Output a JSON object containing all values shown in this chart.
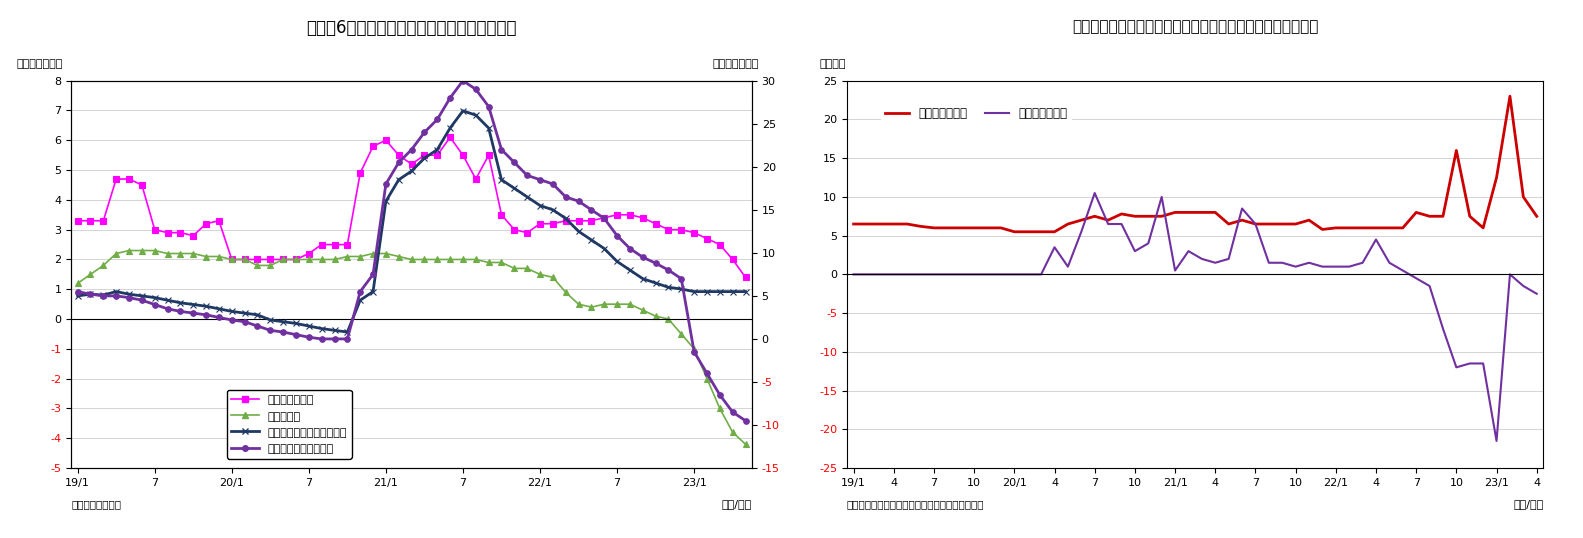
{
  "chart6": {
    "title": "（図表6）　マネタリーベースと内訳（平残）",
    "ylabel_left": "（前年比、％）",
    "ylabel_right": "（前年比、％）",
    "xlabel": "（年/月）",
    "source": "（資料）日本銀行",
    "ylim_left": [
      -5,
      8
    ],
    "ylim_right": [
      -15,
      30
    ],
    "yticks_left": [
      -5,
      -4,
      -3,
      -2,
      -1,
      0,
      1,
      2,
      3,
      4,
      5,
      6,
      7,
      8
    ],
    "yticks_right": [
      -15,
      -10,
      -5,
      0,
      5,
      10,
      15,
      20,
      25,
      30
    ],
    "xtick_labels": [
      "19/1",
      "7",
      "20/1",
      "7",
      "21/1",
      "7",
      "22/1",
      "7",
      "23/1"
    ],
    "xtick_positions": [
      0,
      6,
      12,
      18,
      24,
      30,
      36,
      42,
      48
    ],
    "series": {
      "nichgin_ken": {
        "label": "日銀券発行残高",
        "color": "#FF00FF",
        "marker": "s",
        "markersize": 4,
        "linewidth": 1.2,
        "axis": "left",
        "x": [
          0,
          1,
          2,
          3,
          4,
          5,
          6,
          7,
          8,
          9,
          10,
          11,
          12,
          13,
          14,
          15,
          16,
          17,
          18,
          19,
          20,
          21,
          22,
          23,
          24,
          25,
          26,
          27,
          28,
          29,
          30,
          31,
          32,
          33,
          34,
          35,
          36,
          37,
          38,
          39,
          40,
          41,
          42,
          43,
          44,
          45,
          46,
          47,
          48,
          49,
          50,
          51,
          52
        ],
        "y": [
          3.3,
          3.3,
          3.3,
          4.7,
          4.7,
          4.5,
          3.0,
          2.9,
          2.9,
          2.8,
          3.2,
          3.3,
          2.0,
          2.0,
          2.0,
          2.0,
          2.0,
          2.0,
          2.2,
          2.5,
          2.5,
          2.5,
          4.9,
          5.8,
          6.0,
          5.5,
          5.2,
          5.5,
          5.5,
          6.1,
          5.5,
          4.7,
          5.5,
          3.5,
          3.0,
          2.9,
          3.2,
          3.2,
          3.3,
          3.3,
          3.3,
          3.4,
          3.5,
          3.5,
          3.4,
          3.2,
          3.0,
          3.0,
          2.9,
          2.7,
          2.5,
          2.0,
          1.4
        ]
      },
      "kahei": {
        "label": "貨幣流通高",
        "color": "#70AD47",
        "marker": "^",
        "markersize": 4,
        "linewidth": 1.2,
        "axis": "left",
        "x": [
          0,
          1,
          2,
          3,
          4,
          5,
          6,
          7,
          8,
          9,
          10,
          11,
          12,
          13,
          14,
          15,
          16,
          17,
          18,
          19,
          20,
          21,
          22,
          23,
          24,
          25,
          26,
          27,
          28,
          29,
          30,
          31,
          32,
          33,
          34,
          35,
          36,
          37,
          38,
          39,
          40,
          41,
          42,
          43,
          44,
          45,
          46,
          47,
          48,
          49,
          50,
          51,
          52
        ],
        "y": [
          1.2,
          1.5,
          1.8,
          2.2,
          2.3,
          2.3,
          2.3,
          2.2,
          2.2,
          2.2,
          2.1,
          2.1,
          2.0,
          2.0,
          1.8,
          1.8,
          2.0,
          2.0,
          2.0,
          2.0,
          2.0,
          2.1,
          2.1,
          2.2,
          2.2,
          2.1,
          2.0,
          2.0,
          2.0,
          2.0,
          2.0,
          2.0,
          1.9,
          1.9,
          1.7,
          1.7,
          1.5,
          1.4,
          0.9,
          0.5,
          0.4,
          0.5,
          0.5,
          0.5,
          0.3,
          0.1,
          0.0,
          -0.5,
          -1.0,
          -2.0,
          -3.0,
          -3.8,
          -4.2
        ]
      },
      "monetary_base": {
        "label": "マネタリーベース（右軸）",
        "color": "#1F3864",
        "marker": "x",
        "markersize": 5,
        "linewidth": 2.0,
        "axis": "right",
        "x": [
          0,
          1,
          2,
          3,
          4,
          5,
          6,
          7,
          8,
          9,
          10,
          11,
          12,
          13,
          14,
          15,
          16,
          17,
          18,
          19,
          20,
          21,
          22,
          23,
          24,
          25,
          26,
          27,
          28,
          29,
          30,
          31,
          32,
          33,
          34,
          35,
          36,
          37,
          38,
          39,
          40,
          41,
          42,
          43,
          44,
          45,
          46,
          47,
          48,
          49,
          50,
          51,
          52
        ],
        "y": [
          5.0,
          5.2,
          5.1,
          5.5,
          5.2,
          5.0,
          4.8,
          4.5,
          4.2,
          4.0,
          3.8,
          3.5,
          3.2,
          3.0,
          2.8,
          2.2,
          2.0,
          1.8,
          1.5,
          1.2,
          1.0,
          0.8,
          4.5,
          5.5,
          16.0,
          18.5,
          19.5,
          21.0,
          22.0,
          24.5,
          26.5,
          26.0,
          24.5,
          18.5,
          17.5,
          16.5,
          15.5,
          15.0,
          14.0,
          12.5,
          11.5,
          10.5,
          9.0,
          8.0,
          7.0,
          6.5,
          6.0,
          5.8,
          5.5,
          5.5,
          5.5,
          5.5,
          5.5
        ]
      },
      "nichgin_toza": {
        "label": "日銀当座預金（右軸）",
        "color": "#7030A0",
        "marker": "o",
        "markersize": 4,
        "linewidth": 2.0,
        "axis": "right",
        "x": [
          0,
          1,
          2,
          3,
          4,
          5,
          6,
          7,
          8,
          9,
          10,
          11,
          12,
          13,
          14,
          15,
          16,
          17,
          18,
          19,
          20,
          21,
          22,
          23,
          24,
          25,
          26,
          27,
          28,
          29,
          30,
          31,
          32,
          33,
          34,
          35,
          36,
          37,
          38,
          39,
          40,
          41,
          42,
          43,
          44,
          45,
          46,
          47,
          48,
          49,
          50,
          51,
          52
        ],
        "y": [
          5.5,
          5.2,
          5.0,
          5.0,
          4.8,
          4.5,
          4.0,
          3.5,
          3.2,
          3.0,
          2.8,
          2.5,
          2.2,
          2.0,
          1.5,
          1.0,
          0.8,
          0.5,
          0.2,
          0.0,
          0.0,
          0.0,
          5.5,
          7.5,
          18.0,
          20.5,
          22.0,
          24.0,
          25.5,
          28.0,
          30.0,
          29.0,
          27.0,
          22.0,
          20.5,
          19.0,
          18.5,
          18.0,
          16.5,
          16.0,
          15.0,
          14.0,
          12.0,
          10.5,
          9.5,
          8.8,
          8.0,
          7.0,
          -1.5,
          -4.0,
          -6.5,
          -8.5,
          -9.5
        ]
      }
    }
  },
  "chart7": {
    "title": "（図表７）日銀の国債買入れ額とコロナオペ（月次フロー）",
    "ylabel_left": "（兆円）",
    "xlabel": "（年/月）",
    "source": "（資料）日銀データよりニッセイ基礎研究所作成",
    "ylim": [
      -25,
      25
    ],
    "yticks": [
      -25,
      -20,
      -15,
      -10,
      -5,
      0,
      5,
      10,
      15,
      20,
      25
    ],
    "xtick_labels": [
      "19/1",
      "4",
      "7",
      "10",
      "20/1",
      "4",
      "7",
      "10",
      "21/1",
      "4",
      "7",
      "10",
      "22/1",
      "4",
      "7",
      "10",
      "23/1",
      "4"
    ],
    "xtick_positions": [
      0,
      3,
      6,
      9,
      12,
      15,
      18,
      21,
      24,
      27,
      30,
      33,
      36,
      39,
      42,
      45,
      48,
      51
    ],
    "series": {
      "kokusai": {
        "label": "長期国債買入額",
        "color": "#CC0000",
        "linewidth": 2.0,
        "x": [
          0,
          1,
          2,
          3,
          4,
          5,
          6,
          7,
          8,
          9,
          10,
          11,
          12,
          13,
          14,
          15,
          16,
          17,
          18,
          19,
          20,
          21,
          22,
          23,
          24,
          25,
          26,
          27,
          28,
          29,
          30,
          31,
          32,
          33,
          34,
          35,
          36,
          37,
          38,
          39,
          40,
          41,
          42,
          43,
          44,
          45,
          46,
          47,
          48,
          49,
          50,
          51
        ],
        "y": [
          6.5,
          6.5,
          6.5,
          6.5,
          6.5,
          6.2,
          6.0,
          6.0,
          6.0,
          6.0,
          6.0,
          6.0,
          5.5,
          5.5,
          5.5,
          5.5,
          6.5,
          7.0,
          7.5,
          7.0,
          7.8,
          7.5,
          7.5,
          7.5,
          8.0,
          8.0,
          8.0,
          8.0,
          6.5,
          7.0,
          6.5,
          6.5,
          6.5,
          6.5,
          7.0,
          5.8,
          6.0,
          6.0,
          6.0,
          6.0,
          6.0,
          6.0,
          8.0,
          7.5,
          7.5,
          16.0,
          7.5,
          6.0,
          12.5,
          23.0,
          10.0,
          7.5
        ]
      },
      "corona_ope": {
        "label": "コロナオペ増減",
        "color": "#7030A0",
        "linewidth": 1.5,
        "x": [
          0,
          1,
          2,
          3,
          4,
          5,
          6,
          7,
          8,
          9,
          10,
          11,
          12,
          13,
          14,
          15,
          16,
          17,
          18,
          19,
          20,
          21,
          22,
          23,
          24,
          25,
          26,
          27,
          28,
          29,
          30,
          31,
          32,
          33,
          34,
          35,
          36,
          37,
          38,
          39,
          40,
          41,
          42,
          43,
          44,
          45,
          46,
          47,
          48,
          49,
          50,
          51
        ],
        "y": [
          0,
          0,
          0,
          0,
          0,
          0,
          0,
          0,
          0,
          0,
          0,
          0,
          0,
          0,
          0,
          3.5,
          1.0,
          5.5,
          10.5,
          6.5,
          6.5,
          3.0,
          4.0,
          10.0,
          0.5,
          3.0,
          2.0,
          1.5,
          2.0,
          8.5,
          6.5,
          1.5,
          1.5,
          1.0,
          1.5,
          1.0,
          1.0,
          1.0,
          1.5,
          4.5,
          1.5,
          0.5,
          -0.5,
          -1.5,
          -7.0,
          -12.0,
          -11.5,
          -11.5,
          -21.5,
          0.0,
          -1.5,
          -2.5
        ]
      }
    }
  }
}
